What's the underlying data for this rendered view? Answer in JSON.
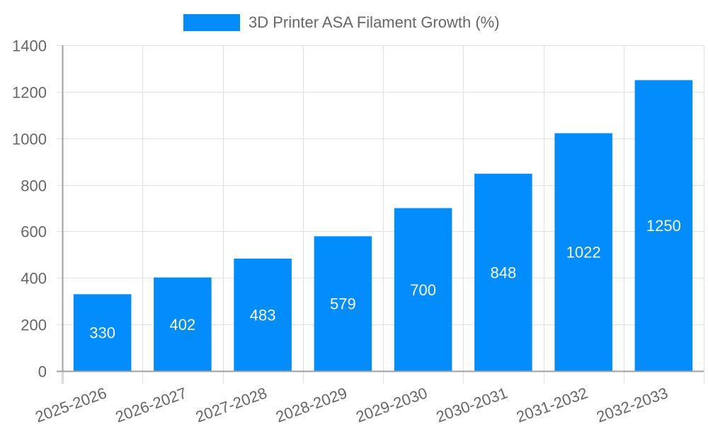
{
  "chart_data": {
    "type": "bar",
    "title": "",
    "xlabel": "",
    "ylabel": "",
    "ylim": [
      0,
      1400
    ],
    "yticks": [
      0,
      200,
      400,
      600,
      800,
      1000,
      1200,
      1400
    ],
    "grid": true,
    "legend_position": "top",
    "categories": [
      "2025-2026",
      "2026-2027",
      "2027-2028",
      "2028-2029",
      "2029-2030",
      "2030-2031",
      "2031-2032",
      "2032-2033"
    ],
    "series": [
      {
        "name": "3D Printer ASA Filament Growth (%)",
        "color": "#038cfc",
        "values": [
          330,
          402,
          483,
          579,
          700,
          848,
          1022,
          1250
        ],
        "data_labels": [
          "330",
          "402",
          "483",
          "579",
          "700",
          "848",
          "1022",
          "1250"
        ]
      }
    ]
  },
  "legend": {
    "label": "3D Printer ASA Filament Growth (%)",
    "color": "#038cfc"
  },
  "colors": {
    "bar": "#038cfc",
    "grid": "#e0e0e0",
    "axis": "#a0a0a0",
    "text": "#666666"
  }
}
